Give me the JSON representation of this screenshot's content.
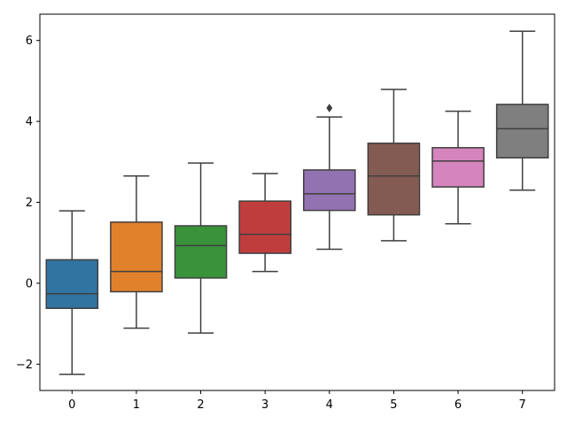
{
  "chart_data": {
    "type": "box",
    "title": "",
    "xlabel": "",
    "ylabel": "",
    "ylim": [
      -2.65,
      6.65
    ],
    "yticks": [
      -2,
      0,
      2,
      4,
      6
    ],
    "ytick_labels": [
      "−2",
      "0",
      "2",
      "4",
      "6"
    ],
    "grid": false,
    "legend": "none",
    "boxes": [
      {
        "label": "0",
        "color": "#3274a1",
        "whisker_low": -2.25,
        "q1": -0.62,
        "median": -0.26,
        "q3": 0.58,
        "whisker_high": 1.79,
        "outliers": []
      },
      {
        "label": "1",
        "color": "#e1812c",
        "whisker_low": -1.11,
        "q1": -0.21,
        "median": 0.29,
        "q3": 1.51,
        "whisker_high": 2.65,
        "outliers": []
      },
      {
        "label": "2",
        "color": "#3a923a",
        "whisker_low": -1.23,
        "q1": 0.13,
        "median": 0.93,
        "q3": 1.42,
        "whisker_high": 2.97,
        "outliers": []
      },
      {
        "label": "3",
        "color": "#c03d3e",
        "whisker_low": 0.29,
        "q1": 0.74,
        "median": 1.21,
        "q3": 2.03,
        "whisker_high": 2.71,
        "outliers": []
      },
      {
        "label": "4",
        "color": "#9372b2",
        "whisker_low": 0.84,
        "q1": 1.8,
        "median": 2.21,
        "q3": 2.8,
        "whisker_high": 4.11,
        "outliers": [
          4.33
        ]
      },
      {
        "label": "5",
        "color": "#845b53",
        "whisker_low": 1.05,
        "q1": 1.69,
        "median": 2.65,
        "q3": 3.46,
        "whisker_high": 4.79,
        "outliers": []
      },
      {
        "label": "6",
        "color": "#d684bd",
        "whisker_low": 1.47,
        "q1": 2.38,
        "median": 3.02,
        "q3": 3.35,
        "whisker_high": 4.25,
        "outliers": []
      },
      {
        "label": "7",
        "color": "#7f7f7f",
        "whisker_low": 2.3,
        "q1": 3.1,
        "median": 3.82,
        "q3": 4.42,
        "whisker_high": 6.23,
        "outliers": []
      }
    ]
  }
}
